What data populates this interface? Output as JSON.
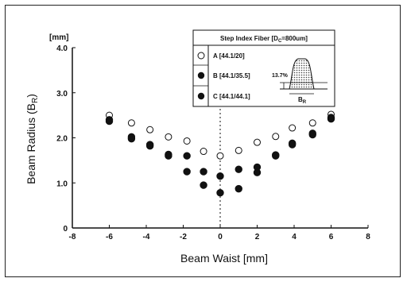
{
  "chart_data": {
    "type": "scatter",
    "title": "",
    "xlabel": "Beam Waist [mm]",
    "ylabel": "Beam Radius (B",
    "ylabel_sub": "R",
    "ylabel_close": ")",
    "yunit": "[mm]",
    "xlim": [
      -8,
      8
    ],
    "ylim": [
      0,
      4.0
    ],
    "xticks": [
      "-8",
      "-6",
      "-4",
      "-2",
      "0",
      "2",
      "4",
      "6",
      "8"
    ],
    "xtick_values": [
      -8,
      -6,
      -4,
      -2,
      0,
      2,
      4,
      6,
      8
    ],
    "yticks": [
      "0",
      "1.0",
      "2.0",
      "3.0",
      "4.0"
    ],
    "ytick_values": [
      0,
      1,
      2,
      3,
      4
    ],
    "grid": false,
    "reference_line": {
      "axis": "x",
      "value": 0,
      "style": "dotted"
    },
    "legend": {
      "placement": "top-right",
      "title": "Step Index Fiber [D",
      "title_sub": "C",
      "title_rest": "=800um]",
      "inset_label_percent": "13.7%",
      "inset_label_b": "B",
      "inset_label_b_sub": "R"
    },
    "series": [
      {
        "name": "A [44.1/20]",
        "marker": "open-circle",
        "x": [
          -6,
          -4.8,
          -3.8,
          -2.8,
          -1.8,
          -0.9,
          0,
          1,
          2,
          3,
          3.9,
          5,
          6
        ],
        "y": [
          2.5,
          2.33,
          2.18,
          2.02,
          1.93,
          1.7,
          1.6,
          1.72,
          1.9,
          2.03,
          2.22,
          2.33,
          2.52
        ]
      },
      {
        "name": "B [44.1/35.5]",
        "marker": "filled-circle",
        "x": [
          -6,
          -4.8,
          -3.8,
          -2.8,
          -1.8,
          -0.9,
          0,
          1,
          2,
          3,
          3.9,
          5,
          6
        ],
        "y": [
          2.4,
          2.02,
          1.85,
          1.63,
          1.6,
          1.25,
          1.15,
          1.3,
          1.35,
          1.62,
          1.88,
          2.1,
          2.45
        ]
      },
      {
        "name": "C [44.1/44.1]",
        "marker": "filled-circle",
        "x": [
          -6,
          -4.8,
          -3.8,
          -2.8,
          -1.8,
          -0.9,
          0,
          1,
          2,
          3,
          3.9,
          5,
          6
        ],
        "y": [
          2.37,
          1.98,
          1.82,
          1.6,
          1.25,
          0.95,
          0.78,
          0.87,
          1.23,
          1.6,
          1.85,
          2.07,
          2.42
        ]
      }
    ]
  }
}
